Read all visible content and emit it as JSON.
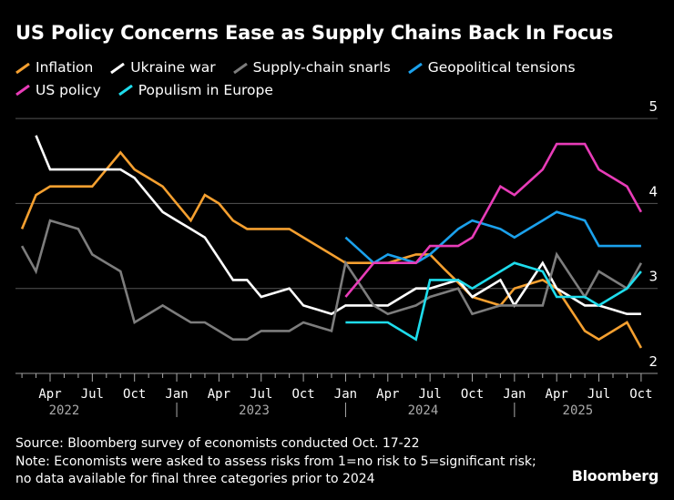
{
  "title": "US Policy Concerns Ease as Supply Chains Back In Focus",
  "legend": [
    {
      "label": "Inflation",
      "color": "#f5a030"
    },
    {
      "label": "Ukraine war",
      "color": "#ffffff"
    },
    {
      "label": "Supply-chain snarls",
      "color": "#7d7d7d"
    },
    {
      "label": "Geopolitical tensions",
      "color": "#1ba1ec"
    },
    {
      "label": "US policy",
      "color": "#e83cb8"
    },
    {
      "label": "Populism in Europe",
      "color": "#1edcec"
    }
  ],
  "footer": {
    "source": "Source: Bloomberg survey of economists conducted Oct. 17-22",
    "note1": "Note: Economists were asked to assess risks from 1=no risk to 5=significant risk;",
    "note2": "no data available for final three categories prior to 2024",
    "logo": "Bloomberg"
  },
  "chart_data": {
    "type": "line",
    "title": "US Policy Concerns Ease as Supply Chains Back In Focus",
    "ylim": [
      2,
      5
    ],
    "y_ticks": [
      "2",
      "3",
      "4",
      "5"
    ],
    "y_axis_side": "right",
    "grid": true,
    "legend_placement": "top",
    "x_range": [
      "2022-01",
      "2025-10"
    ],
    "x_tick_labels": [
      "Apr",
      "Jul",
      "Oct",
      "Jan",
      "Apr",
      "Jul",
      "Oct",
      "Jan",
      "Apr",
      "Jul",
      "Oct",
      "Jan",
      "Apr",
      "Jul",
      "Oct"
    ],
    "x_tick_months": [
      "2022-04",
      "2022-07",
      "2022-10",
      "2023-01",
      "2023-04",
      "2023-07",
      "2023-10",
      "2024-01",
      "2024-04",
      "2024-07",
      "2024-10",
      "2025-01",
      "2025-04",
      "2025-07",
      "2025-10"
    ],
    "year_labels": [
      "2022",
      "2023",
      "2024",
      "2025"
    ],
    "series": [
      {
        "name": "Inflation",
        "color": "#f5a030",
        "start": "2022-02",
        "values": [
          3.7,
          4.1,
          4.2,
          4.2,
          4.2,
          4.2,
          4.4,
          4.6,
          4.4,
          4.3,
          4.2,
          4.0,
          3.8,
          4.1,
          4.0,
          3.8,
          3.7,
          3.7,
          3.7,
          3.7,
          3.6,
          3.5,
          3.4,
          3.3,
          3.3,
          3.3,
          3.3,
          3.35,
          3.4,
          3.4,
          3.23,
          3.07,
          2.9,
          2.85,
          2.8,
          3.0,
          3.05,
          3.1,
          3.0,
          2.75,
          2.5,
          2.4,
          2.5,
          2.6,
          2.3
        ]
      },
      {
        "name": "Ukraine war",
        "color": "#ffffff",
        "start": "2022-03",
        "values": [
          4.8,
          4.4,
          4.4,
          4.4,
          4.4,
          4.4,
          4.4,
          4.3,
          4.1,
          3.9,
          3.8,
          3.7,
          3.6,
          3.35,
          3.1,
          3.1,
          2.9,
          2.95,
          3.0,
          2.8,
          2.75,
          2.7,
          2.8,
          2.8,
          2.8,
          2.8,
          2.9,
          3.0,
          3.0,
          3.05,
          3.1,
          2.9,
          3.0,
          3.1,
          2.8,
          3.05,
          3.3,
          3.0,
          2.9,
          2.8,
          2.8,
          2.75,
          2.7,
          2.7
        ]
      },
      {
        "name": "Supply-chain snarls",
        "color": "#7d7d7d",
        "start": "2022-02",
        "values": [
          3.5,
          3.2,
          3.8,
          3.75,
          3.7,
          3.4,
          3.3,
          3.2,
          2.6,
          2.7,
          2.8,
          2.7,
          2.6,
          2.6,
          2.5,
          2.4,
          2.4,
          2.5,
          2.5,
          2.5,
          2.6,
          2.55,
          2.5,
          3.3,
          3.05,
          2.8,
          2.7,
          2.75,
          2.8,
          2.9,
          2.95,
          3.0,
          2.7,
          2.75,
          2.8,
          2.8,
          2.8,
          2.8,
          3.4,
          3.15,
          2.9,
          3.2,
          3.1,
          3.0,
          3.3
        ]
      },
      {
        "name": "Geopolitical tensions",
        "color": "#1ba1ec",
        "start": "2024-01",
        "values": [
          3.6,
          3.45,
          3.3,
          3.4,
          3.35,
          3.3,
          3.4,
          3.55,
          3.7,
          3.8,
          3.75,
          3.7,
          3.6,
          3.7,
          3.8,
          3.9,
          3.85,
          3.8,
          3.5,
          3.5,
          3.5,
          3.5
        ]
      },
      {
        "name": "US policy",
        "color": "#e83cb8",
        "start": "2024-01",
        "values": [
          2.9,
          3.1,
          3.3,
          3.3,
          3.3,
          3.3,
          3.5,
          3.5,
          3.5,
          3.6,
          3.9,
          4.2,
          4.1,
          4.25,
          4.4,
          4.7,
          4.7,
          4.7,
          4.4,
          4.3,
          4.2,
          3.9
        ]
      },
      {
        "name": "Populism in Europe",
        "color": "#1edcec",
        "start": "2024-01",
        "values": [
          2.6,
          2.6,
          2.6,
          2.6,
          2.5,
          2.4,
          3.1,
          3.1,
          3.1,
          3.0,
          3.1,
          3.2,
          3.3,
          3.25,
          3.2,
          2.9,
          2.9,
          2.9,
          2.8,
          2.9,
          3.0,
          3.2
        ]
      }
    ]
  }
}
